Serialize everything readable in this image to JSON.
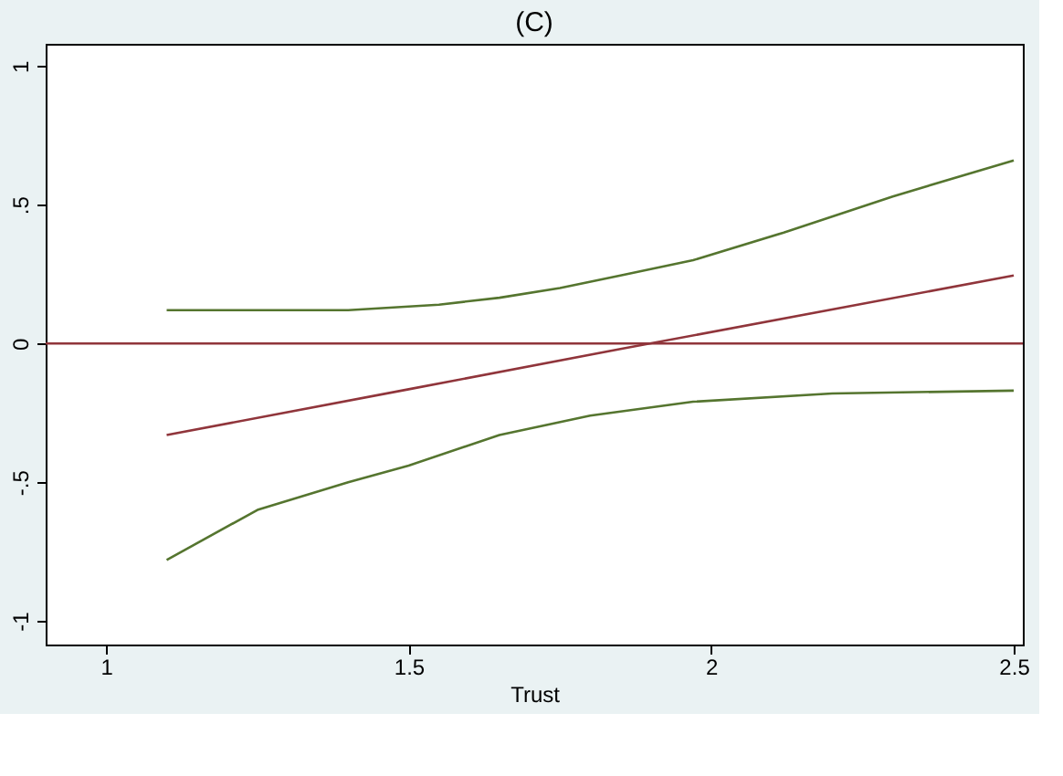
{
  "chart_data": {
    "type": "line",
    "title": "(C)",
    "xlabel": "Trust",
    "xlim": [
      0.9,
      2.515
    ],
    "ylim": [
      -1.085,
      1.08
    ],
    "xticks": [
      1,
      1.5,
      2,
      2.5
    ],
    "yticks": [
      -1,
      {
        "value": -0.5,
        "label": "-.5"
      },
      0,
      {
        "value": 0.5,
        "label": ".5"
      },
      1
    ],
    "grid": false,
    "line_style": "solid",
    "marker": "none",
    "ref_lines": [
      {
        "axis": "y",
        "value": 0,
        "color": "#90353b"
      }
    ],
    "series": [
      {
        "color": "#55752f",
        "x": [
          1.1,
          1.25,
          1.4,
          1.55,
          1.65,
          1.75,
          1.85,
          1.97,
          2.12,
          2.3,
          2.5
        ],
        "values": [
          0.12,
          0.12,
          0.12,
          0.14,
          0.165,
          0.2,
          0.245,
          0.3,
          0.4,
          0.53,
          0.66
        ]
      },
      {
        "color": "#90353b",
        "x": [
          1.1,
          1.5,
          1.85,
          2.5
        ],
        "values": [
          -0.33,
          -0.165,
          -0.02,
          0.245
        ]
      },
      {
        "color": "#55752f",
        "x": [
          1.1,
          1.25,
          1.4,
          1.5,
          1.65,
          1.8,
          1.97,
          2.2,
          2.5
        ],
        "values": [
          -0.78,
          -0.6,
          -0.5,
          -0.44,
          -0.33,
          -0.26,
          -0.21,
          -0.18,
          -0.17
        ]
      }
    ]
  }
}
